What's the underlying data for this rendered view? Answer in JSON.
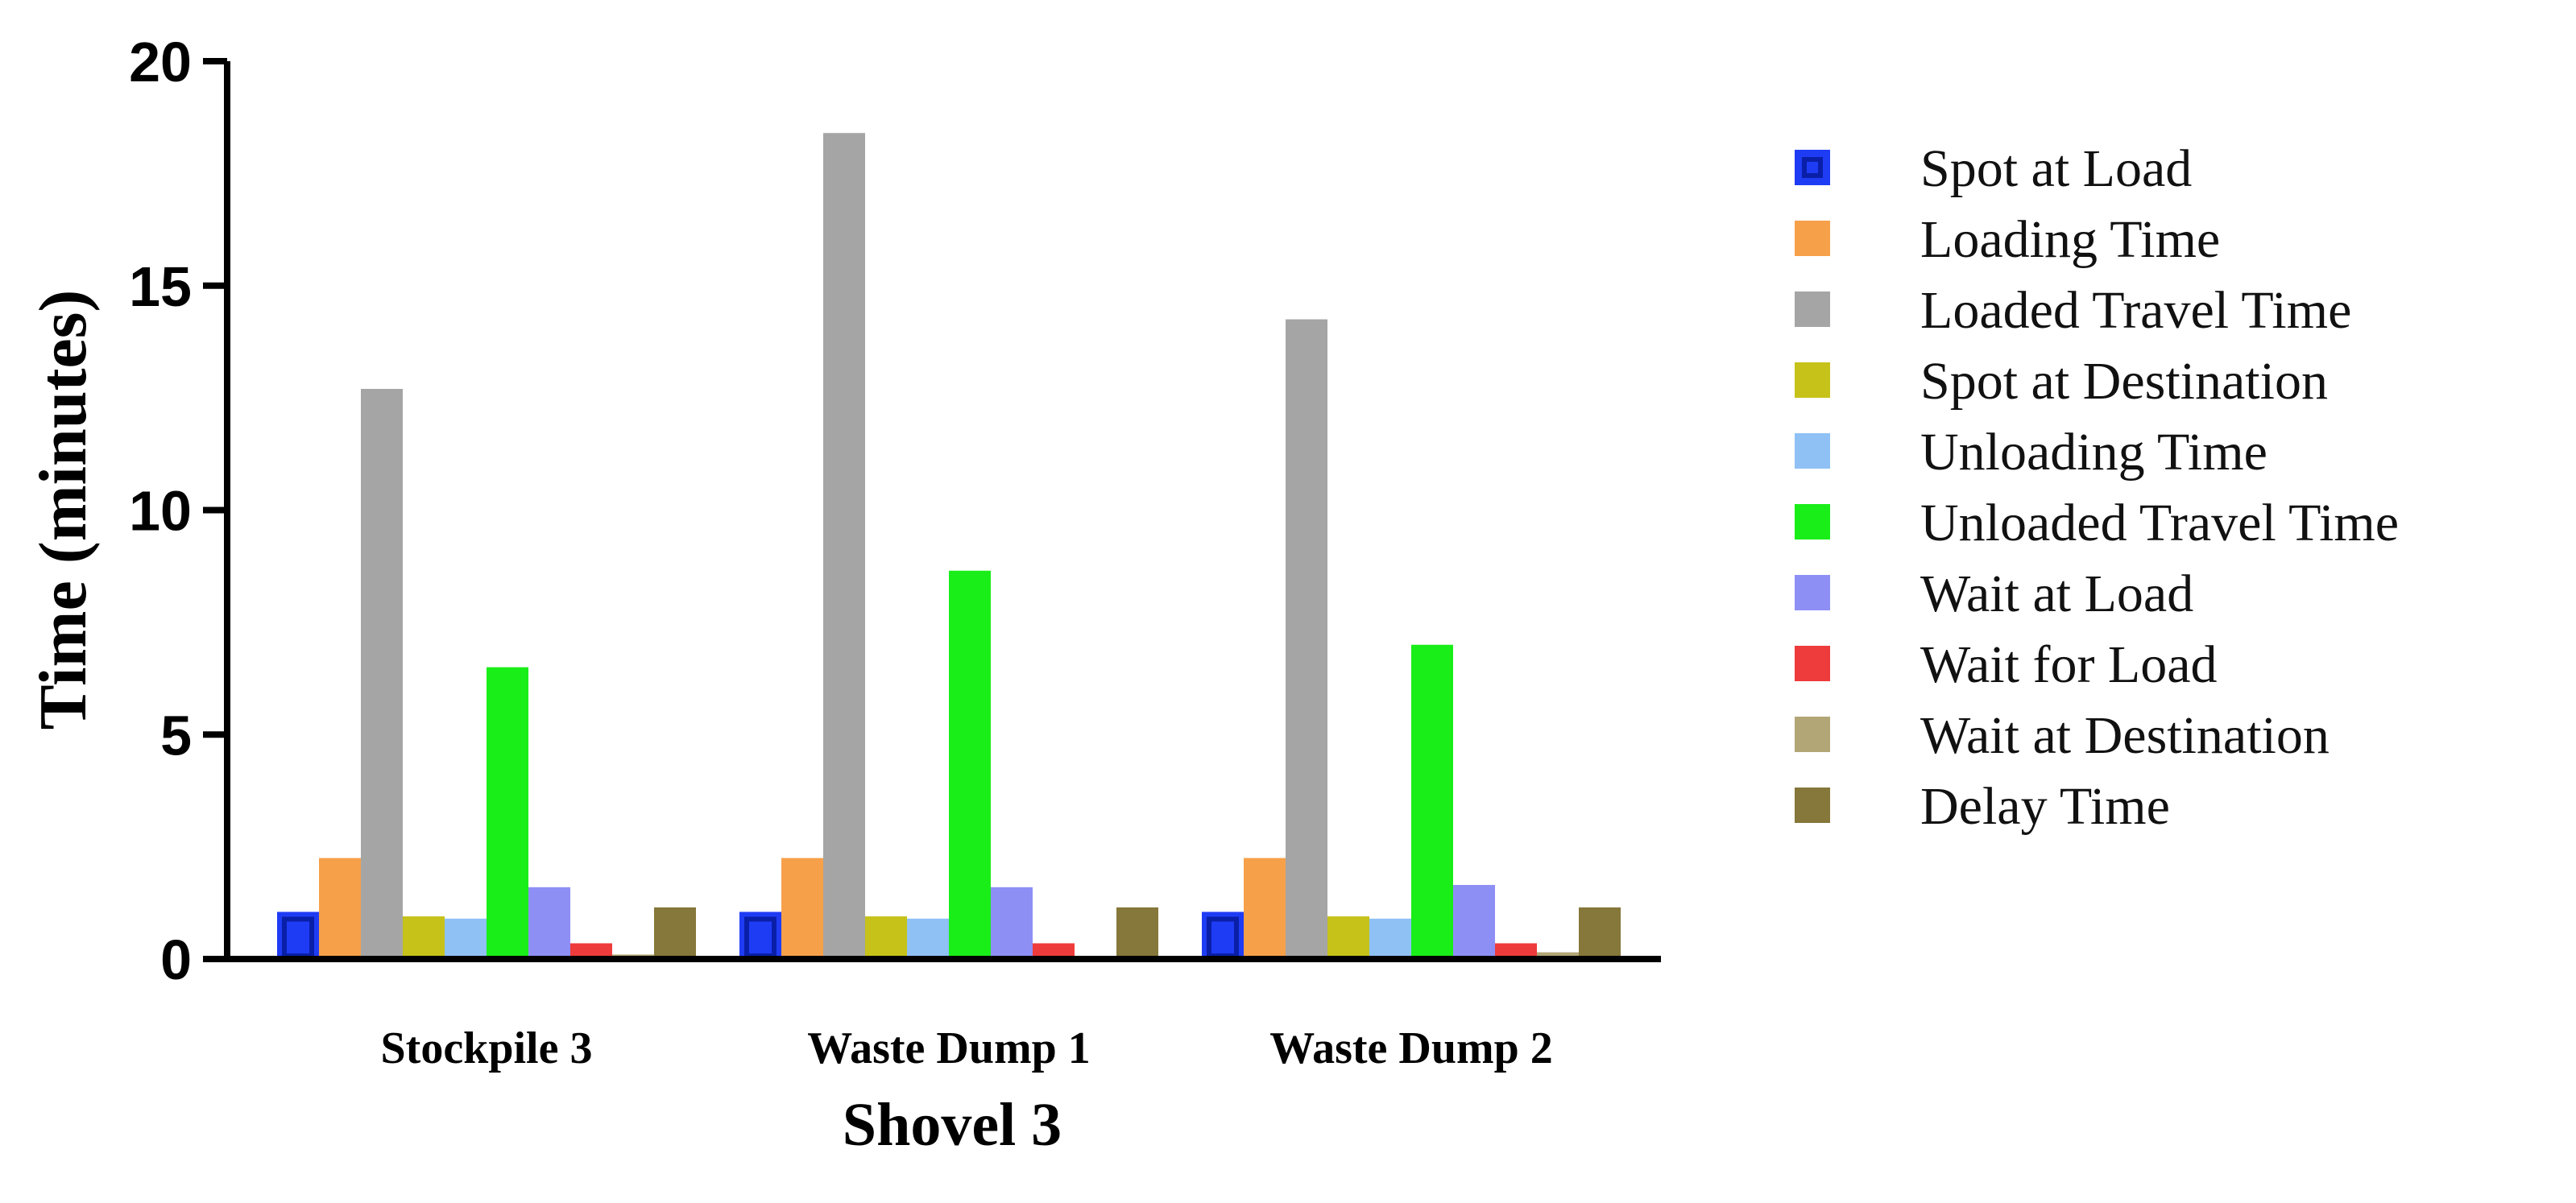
{
  "chart_data": {
    "type": "bar",
    "title": "",
    "xlabel": "Shovel 3",
    "ylabel": "Time (minutes)",
    "ylim": [
      0,
      20
    ],
    "yticks": [
      "0",
      "5",
      "10",
      "15",
      "20"
    ],
    "categories": [
      "Stockpile 3",
      "Waste Dump 1",
      "Waste Dump 2"
    ],
    "legend_position": "right",
    "grid": false,
    "series": [
      {
        "name": "Spot at Load",
        "color": "#1f3cf5",
        "values": [
          1.05,
          1.05,
          1.05
        ]
      },
      {
        "name": "Loading Time",
        "color": "#f7a04a",
        "values": [
          2.25,
          2.25,
          2.25
        ]
      },
      {
        "name": "Loaded Travel Time",
        "color": "#a5a5a5",
        "values": [
          12.7,
          18.4,
          14.25
        ]
      },
      {
        "name": "Spot at Destination",
        "color": "#c6c21a",
        "values": [
          0.95,
          0.95,
          0.95
        ]
      },
      {
        "name": "Unloading Time",
        "color": "#8fc1f5",
        "values": [
          0.9,
          0.9,
          0.9
        ]
      },
      {
        "name": "Unloaded Travel Time",
        "color": "#19ee19",
        "values": [
          6.5,
          8.65,
          7.0
        ]
      },
      {
        "name": "Wait at Load",
        "color": "#8e8ff5",
        "values": [
          1.6,
          1.6,
          1.65
        ]
      },
      {
        "name": "Wait for Load",
        "color": "#ee3b3b",
        "values": [
          0.35,
          0.35,
          0.35
        ]
      },
      {
        "name": "Wait at Destination",
        "color": "#b2a677",
        "values": [
          0.1,
          0.05,
          0.15
        ]
      },
      {
        "name": "Delay Time",
        "color": "#86773a",
        "values": [
          1.15,
          1.15,
          1.15
        ]
      }
    ]
  }
}
